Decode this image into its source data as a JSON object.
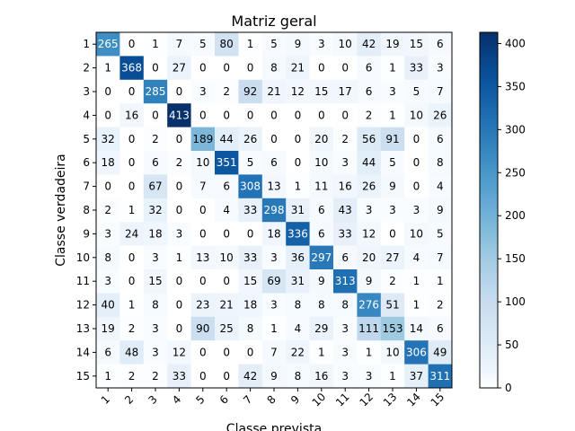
{
  "chart_data": {
    "type": "heatmap",
    "title": "Matriz geral",
    "xlabel": "Classe prevista",
    "ylabel": "Classe verdadeira",
    "x_tick_labels": [
      "1",
      "2",
      "3",
      "4",
      "5",
      "6",
      "7",
      "8",
      "9",
      "10",
      "11",
      "12",
      "13",
      "14",
      "15"
    ],
    "y_tick_labels": [
      "1",
      "2",
      "3",
      "4",
      "5",
      "6",
      "7",
      "8",
      "9",
      "10",
      "11",
      "12",
      "13",
      "14",
      "15"
    ],
    "colormap": "Blues",
    "color_range": [
      0,
      413
    ],
    "colorbar_ticks": [
      "0",
      "50",
      "100",
      "150",
      "200",
      "250",
      "300",
      "350",
      "400"
    ],
    "colorbar_tick_values": [
      0,
      50,
      100,
      150,
      200,
      250,
      300,
      350,
      400
    ],
    "matrix": [
      [
        265,
        0,
        1,
        7,
        5,
        80,
        1,
        5,
        9,
        3,
        10,
        42,
        19,
        15,
        6
      ],
      [
        1,
        368,
        0,
        27,
        0,
        0,
        0,
        8,
        21,
        0,
        0,
        6,
        1,
        33,
        3
      ],
      [
        0,
        0,
        285,
        0,
        3,
        2,
        92,
        21,
        12,
        15,
        17,
        6,
        3,
        5,
        7
      ],
      [
        0,
        16,
        0,
        413,
        0,
        0,
        0,
        0,
        0,
        0,
        0,
        2,
        1,
        10,
        26
      ],
      [
        32,
        0,
        2,
        0,
        189,
        44,
        26,
        0,
        0,
        20,
        2,
        56,
        91,
        0,
        6
      ],
      [
        18,
        0,
        6,
        2,
        10,
        351,
        5,
        6,
        0,
        10,
        3,
        44,
        5,
        0,
        8
      ],
      [
        0,
        0,
        67,
        0,
        7,
        6,
        308,
        13,
        1,
        11,
        16,
        26,
        9,
        0,
        4
      ],
      [
        2,
        1,
        32,
        0,
        0,
        4,
        33,
        298,
        31,
        6,
        43,
        3,
        3,
        3,
        9
      ],
      [
        3,
        24,
        18,
        3,
        0,
        0,
        0,
        18,
        336,
        6,
        33,
        12,
        0,
        10,
        5
      ],
      [
        8,
        0,
        3,
        1,
        13,
        10,
        33,
        3,
        36,
        297,
        6,
        20,
        27,
        4,
        7
      ],
      [
        3,
        0,
        15,
        0,
        0,
        0,
        15,
        69,
        31,
        9,
        313,
        9,
        2,
        1,
        1
      ],
      [
        40,
        1,
        8,
        0,
        23,
        21,
        18,
        3,
        8,
        8,
        8,
        276,
        51,
        1,
        2
      ],
      [
        19,
        2,
        3,
        0,
        90,
        25,
        8,
        1,
        4,
        29,
        3,
        111,
        153,
        14,
        6
      ],
      [
        6,
        48,
        3,
        12,
        0,
        0,
        0,
        7,
        22,
        1,
        3,
        1,
        10,
        306,
        49
      ],
      [
        1,
        2,
        2,
        33,
        0,
        0,
        42,
        9,
        8,
        16,
        3,
        3,
        1,
        37,
        311
      ]
    ]
  }
}
